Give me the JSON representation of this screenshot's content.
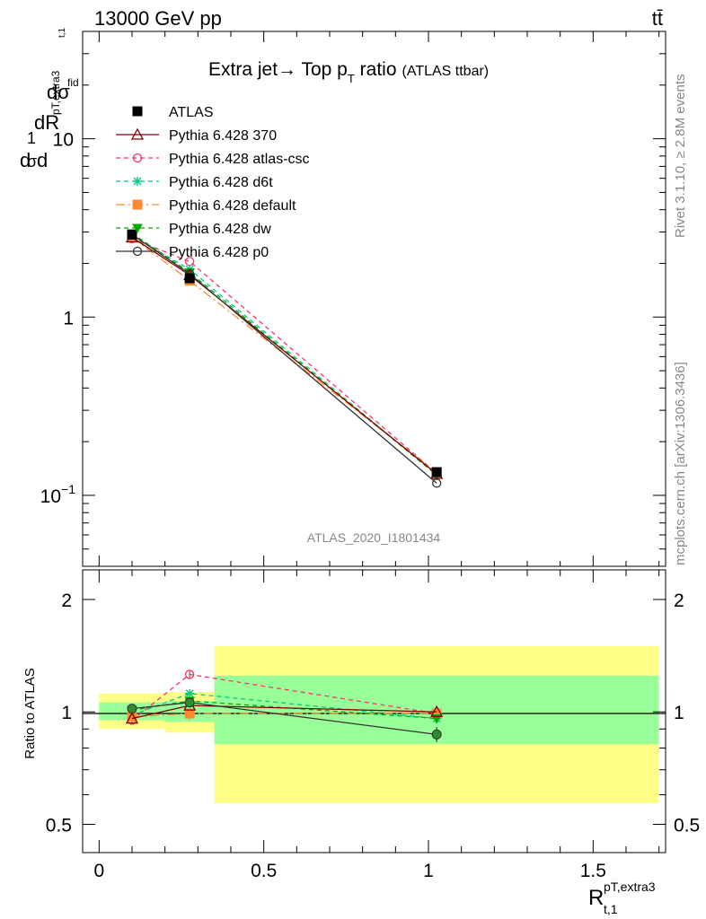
{
  "header": {
    "energy_label": "13000 GeV pp",
    "process_label": "tt̄"
  },
  "side_labels": {
    "rivet": "Rivet 3.1.10, ≥ 2.8M events",
    "mcplots": "mcplots.cern.ch [arXiv:1306.3436]"
  },
  "colors": {
    "band_outer": "#ffff88",
    "band_inner": "#99ff99",
    "atlas": "#000000",
    "p370": "#800000",
    "atlascsc": "#ff3366",
    "d6t": "#00cc88",
    "default": "#ff8833",
    "dw": "#00aa00",
    "p0": "#333333"
  },
  "chart_data": [
    {
      "type": "line",
      "title": "Extra jet→ Top p_T ratio (ATLAS ttbar)",
      "title_main": "Extra jet",
      "title_mid": "→ Top p",
      "title_sub": "T",
      "title_tail": " ratio",
      "title_small": "(ATLAS ttbar)",
      "ylabel": "1/σ dσ^fid / dR_{t,1}^{pT,extra3}",
      "ylabel_parts": {
        "a": "d",
        "b": "1",
        "c": "σ",
        "d": "d",
        "e": "dσ",
        "f": "fid",
        "g": "pT,extra3",
        "h": "t,1",
        "i": "dR"
      },
      "yscale": "log",
      "ylim": [
        0.04,
        40
      ],
      "yticks": [
        {
          "v": 0.1,
          "base": "10",
          "exp": "−1"
        },
        {
          "v": 1,
          "label": "1"
        },
        {
          "v": 10,
          "label": "10"
        }
      ],
      "xlim": [
        -0.05,
        1.72
      ],
      "watermark": "ATLAS_2020_I1801434",
      "legend_position": "top-left",
      "series": [
        {
          "name": "ATLAS",
          "key": "atlas",
          "marker": "square-filled",
          "x": [
            0.1,
            0.275,
            1.025
          ],
          "y": [
            2.9,
            1.65,
            0.135
          ],
          "err": [
            0.05,
            0.05,
            0.006
          ]
        },
        {
          "name": "Pythia 6.428 370",
          "key": "p370",
          "marker": "triangle-open",
          "x": [
            0.1,
            0.275,
            1.025
          ],
          "y": [
            2.8,
            1.72,
            0.132
          ]
        },
        {
          "name": "Pythia 6.428 atlas-csc",
          "key": "atlascsc",
          "marker": "circle-open",
          "dash": "5,4",
          "x": [
            0.1,
            0.275,
            1.025
          ],
          "y": [
            2.75,
            2.05,
            0.133
          ]
        },
        {
          "name": "Pythia 6.428 d6t",
          "key": "d6t",
          "marker": "star",
          "dash": "5,4",
          "x": [
            0.1,
            0.275,
            1.025
          ],
          "y": [
            2.85,
            1.85,
            0.13
          ]
        },
        {
          "name": "Pythia 6.428 default",
          "key": "default",
          "marker": "square-filled",
          "dash": "10,4,2,4",
          "x": [
            0.1,
            0.275,
            1.025
          ],
          "y": [
            2.8,
            1.6,
            0.134
          ]
        },
        {
          "name": "Pythia 6.428 dw",
          "key": "dw",
          "marker": "triangle-down-filled",
          "dash": "5,4",
          "x": [
            0.1,
            0.275,
            1.025
          ],
          "y": [
            2.95,
            1.78,
            0.13
          ]
        },
        {
          "name": "Pythia 6.428 p0",
          "key": "p0",
          "marker": "circle-open",
          "x": [
            0.1,
            0.275,
            1.025
          ],
          "y": [
            2.9,
            1.75,
            0.117
          ]
        }
      ]
    },
    {
      "type": "line",
      "ylabel": "Ratio to ATLAS",
      "xlabel": "R_{t,1}^{pT,extra3}",
      "xlabel_parts": {
        "base": "R",
        "sup": "pT,extra3",
        "sub": "t,1"
      },
      "yscale": "log",
      "ylim": [
        0.42,
        2.4
      ],
      "yticks": [
        {
          "v": 0.5,
          "label": "0.5"
        },
        {
          "v": 1,
          "label": "1"
        },
        {
          "v": 2,
          "label": "2"
        }
      ],
      "xlim": [
        -0.05,
        1.72
      ],
      "xticks": [
        {
          "v": 0,
          "label": "0"
        },
        {
          "v": 0.5,
          "label": "0.5"
        },
        {
          "v": 1,
          "label": "1"
        },
        {
          "v": 1.5,
          "label": "1.5"
        }
      ],
      "bands": [
        {
          "x0": 0.0,
          "x1": 0.2,
          "outer": [
            0.9,
            1.12
          ],
          "inner": [
            0.95,
            1.06
          ]
        },
        {
          "x0": 0.2,
          "x1": 0.35,
          "outer": [
            0.88,
            1.13
          ],
          "inner": [
            0.94,
            1.07
          ]
        },
        {
          "x0": 0.35,
          "x1": 1.7,
          "outer": [
            0.57,
            1.5
          ],
          "inner": [
            0.82,
            1.25
          ]
        }
      ],
      "series": [
        {
          "key": "p370",
          "x": [
            0.1,
            0.275,
            1.025
          ],
          "y": [
            0.96,
            1.04,
            1.0
          ]
        },
        {
          "key": "atlascsc",
          "x": [
            0.1,
            0.275,
            1.025
          ],
          "y": [
            0.95,
            1.26,
            0.99
          ],
          "err": [
            0.02,
            0.03,
            0.03
          ]
        },
        {
          "key": "d6t",
          "x": [
            0.1,
            0.275,
            1.025
          ],
          "y": [
            0.98,
            1.12,
            0.96
          ]
        },
        {
          "key": "default",
          "x": [
            0.1,
            0.275,
            1.025
          ],
          "y": [
            0.97,
            0.99,
            0.99
          ],
          "err": [
            0.02,
            0.04,
            0.04
          ]
        },
        {
          "key": "dw",
          "x": [
            0.1,
            0.275,
            1.025
          ],
          "y": [
            1.01,
            1.07,
            0.96
          ]
        },
        {
          "key": "p0",
          "x": [
            0.1,
            0.275,
            1.025
          ],
          "y": [
            1.02,
            1.06,
            0.87
          ],
          "err": [
            0.02,
            0.03,
            0.04
          ]
        }
      ]
    }
  ]
}
